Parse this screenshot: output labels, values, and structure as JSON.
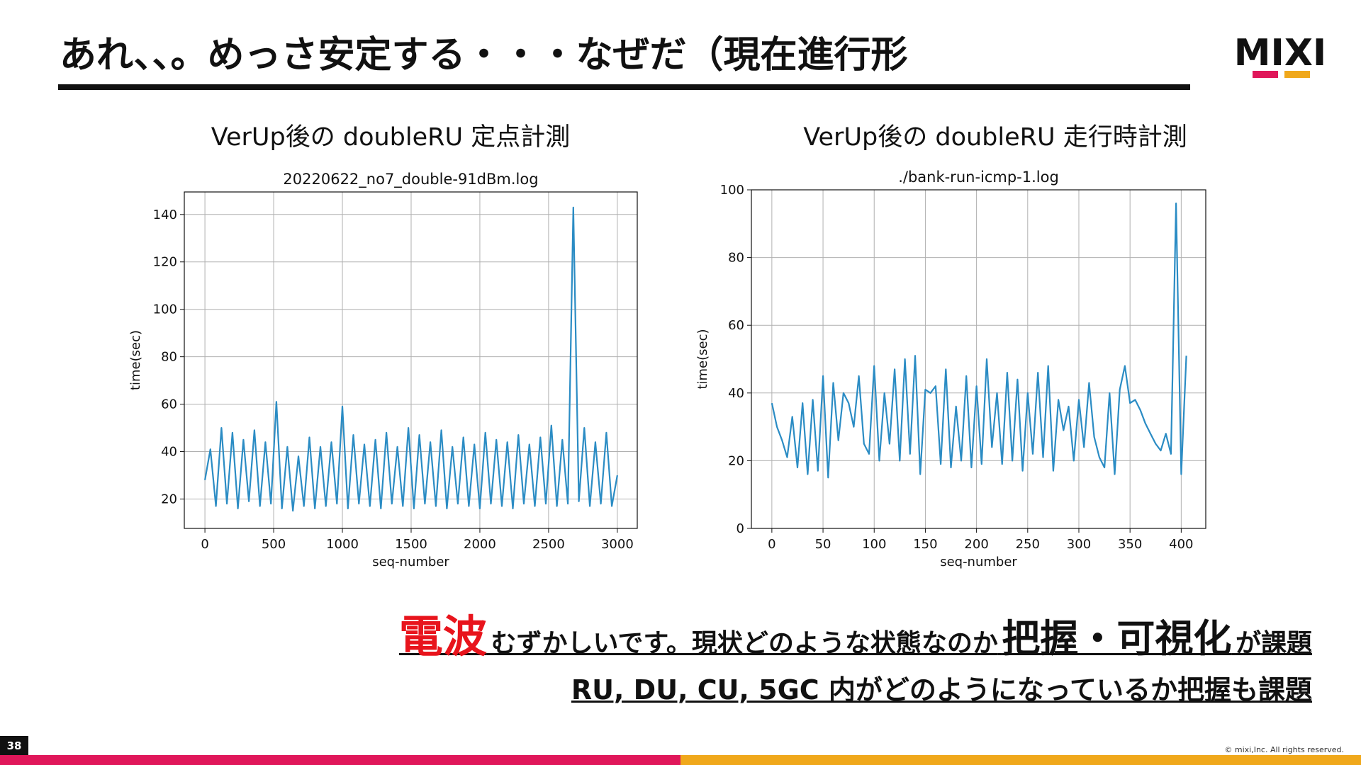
{
  "slide": {
    "title": "あれ、、。めっさ安定する・・・なぜだ（現在進行形",
    "logo": "MIXI",
    "page_number": "38",
    "copyright": "© mixi,Inc. All rights reserved.",
    "message": {
      "line1": [
        "電波",
        "むずかしいです。現状どのような状態なのか",
        "把握・可視化",
        "が課題"
      ],
      "line2": "RU, DU, CU, 5GC 内がどのようになっているか把握も課題"
    }
  },
  "chart_data": [
    {
      "type": "line",
      "heading": "VerUp後の doubleRU 定点計測",
      "title": "20220622_no7_double-91dBm.log",
      "xlabel": "seq-number",
      "ylabel": "time(sec)",
      "color": "#2b8cc4",
      "grid": true,
      "xlim": [
        -150,
        3145
      ],
      "ylim": [
        7.6,
        149.5
      ],
      "xticks": [
        0,
        500,
        1000,
        1500,
        2000,
        2500,
        3000
      ],
      "yticks": [
        20,
        40,
        60,
        80,
        100,
        120,
        140
      ],
      "x": [
        0,
        40,
        80,
        120,
        160,
        200,
        240,
        280,
        320,
        360,
        400,
        440,
        480,
        520,
        560,
        600,
        640,
        680,
        720,
        760,
        800,
        840,
        880,
        920,
        960,
        1000,
        1040,
        1080,
        1120,
        1160,
        1200,
        1240,
        1280,
        1320,
        1360,
        1400,
        1440,
        1480,
        1520,
        1560,
        1600,
        1640,
        1680,
        1720,
        1760,
        1800,
        1840,
        1880,
        1920,
        1960,
        2000,
        2040,
        2080,
        2120,
        2160,
        2200,
        2240,
        2280,
        2320,
        2360,
        2400,
        2440,
        2480,
        2520,
        2560,
        2600,
        2640,
        2680,
        2720,
        2760,
        2800,
        2840,
        2880,
        2920,
        2960,
        3000
      ],
      "values": [
        28,
        41,
        17,
        50,
        18,
        48,
        16,
        45,
        19,
        49,
        17,
        44,
        18,
        61,
        16,
        42,
        15,
        38,
        17,
        46,
        16,
        42,
        17,
        44,
        18,
        59,
        16,
        47,
        18,
        43,
        17,
        45,
        16,
        48,
        18,
        42,
        17,
        50,
        16,
        47,
        18,
        44,
        17,
        49,
        16,
        42,
        18,
        46,
        17,
        43,
        16,
        48,
        18,
        45,
        17,
        44,
        16,
        47,
        18,
        43,
        17,
        46,
        18,
        51,
        17,
        45,
        18,
        143,
        19,
        50,
        17,
        44,
        18,
        48,
        17,
        30
      ]
    },
    {
      "type": "line",
      "heading": "VerUp後の doubleRU 走行時計測",
      "title": "./bank-run-icmp-1.log",
      "xlabel": "seq-number",
      "ylabel": "time(sec)",
      "color": "#2b8cc4",
      "grid": true,
      "xlim": [
        -20,
        424
      ],
      "ylim": [
        0,
        100
      ],
      "xticks": [
        0,
        50,
        100,
        150,
        200,
        250,
        300,
        350,
        400
      ],
      "yticks": [
        0,
        20,
        40,
        60,
        80,
        100
      ],
      "x": [
        0,
        5,
        10,
        15,
        20,
        25,
        30,
        35,
        40,
        45,
        50,
        55,
        60,
        65,
        70,
        75,
        80,
        85,
        90,
        95,
        100,
        105,
        110,
        115,
        120,
        125,
        130,
        135,
        140,
        145,
        150,
        155,
        160,
        165,
        170,
        175,
        180,
        185,
        190,
        195,
        200,
        205,
        210,
        215,
        220,
        225,
        230,
        235,
        240,
        245,
        250,
        255,
        260,
        265,
        270,
        275,
        280,
        285,
        290,
        295,
        300,
        305,
        310,
        315,
        320,
        325,
        330,
        335,
        340,
        345,
        350,
        355,
        360,
        365,
        370,
        375,
        380,
        385,
        390,
        395,
        400,
        405
      ],
      "values": [
        37,
        30,
        26,
        21,
        33,
        18,
        37,
        16,
        38,
        17,
        45,
        15,
        43,
        26,
        40,
        37,
        30,
        45,
        25,
        22,
        48,
        20,
        40,
        25,
        47,
        20,
        50,
        22,
        51,
        16,
        41,
        40,
        42,
        19,
        47,
        18,
        36,
        20,
        45,
        18,
        42,
        19,
        50,
        24,
        40,
        19,
        46,
        20,
        44,
        17,
        40,
        22,
        46,
        21,
        48,
        17,
        38,
        29,
        36,
        20,
        38,
        24,
        43,
        27,
        21,
        18,
        40,
        16,
        41,
        48,
        37,
        38,
        35,
        31,
        28,
        25,
        23,
        28,
        22,
        96,
        16,
        51
      ]
    }
  ]
}
